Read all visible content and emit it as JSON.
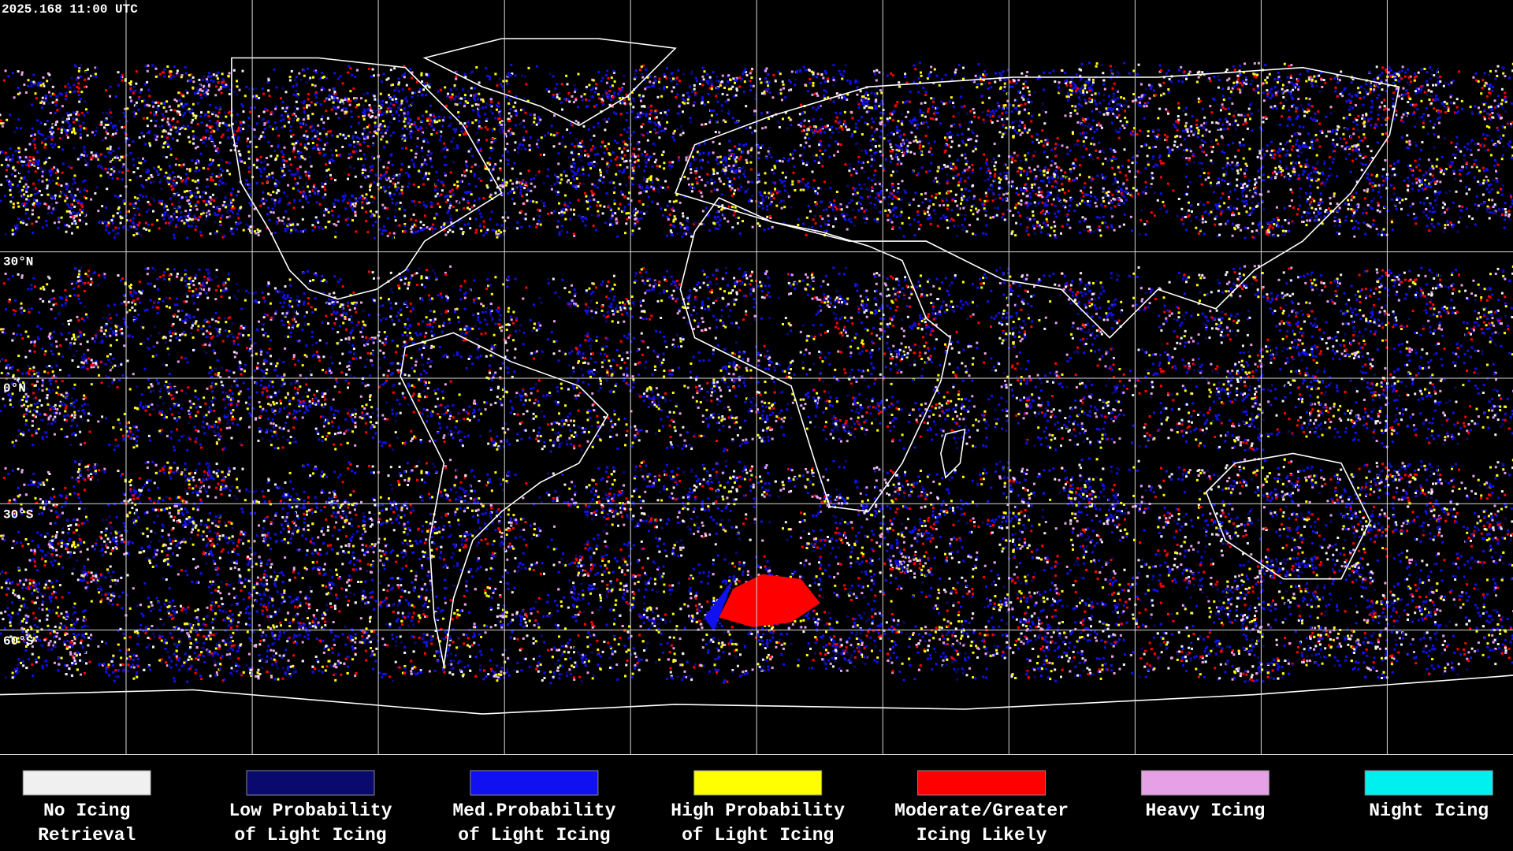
{
  "header": {
    "timestamp": "2025.168 11:00 UTC"
  },
  "map": {
    "latitude_labels": [
      "30°N",
      "0°N",
      "30°S",
      "60°S"
    ]
  },
  "legend": {
    "items": [
      {
        "label": [
          "No Icing",
          "Retrieval"
        ],
        "color": "#f0f0f0"
      },
      {
        "label": [
          "Low Probability",
          "of Light Icing"
        ],
        "color": "#0a0a6e"
      },
      {
        "label": [
          "Med.Probability",
          "of Light Icing"
        ],
        "color": "#1010f0"
      },
      {
        "label": [
          "High Probability",
          "of Light Icing"
        ],
        "color": "#ffff00"
      },
      {
        "label": [
          "Moderate/Greater",
          "Icing Likely"
        ],
        "color": "#ff0000"
      },
      {
        "label": [
          "Heavy Icing"
        ],
        "color": "#e6a0e6"
      },
      {
        "label": [
          "Night Icing"
        ],
        "color": "#00f0f0"
      }
    ]
  }
}
